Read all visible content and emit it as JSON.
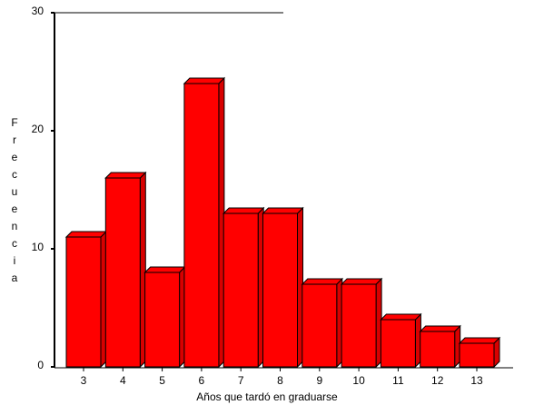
{
  "chart_data": {
    "type": "bar3d",
    "x_label": "Años que tardó en graduarse",
    "y_label": "Frecuencia",
    "categories": [
      "3",
      "4",
      "5",
      "6",
      "7",
      "8",
      "9",
      "10",
      "11",
      "12",
      "13"
    ],
    "values": [
      11,
      16,
      8,
      24,
      13,
      13,
      7,
      7,
      4,
      3,
      2
    ],
    "color": "#ff0000",
    "ylim": [
      0,
      30
    ],
    "yticks": [
      0,
      10,
      20,
      30
    ]
  }
}
